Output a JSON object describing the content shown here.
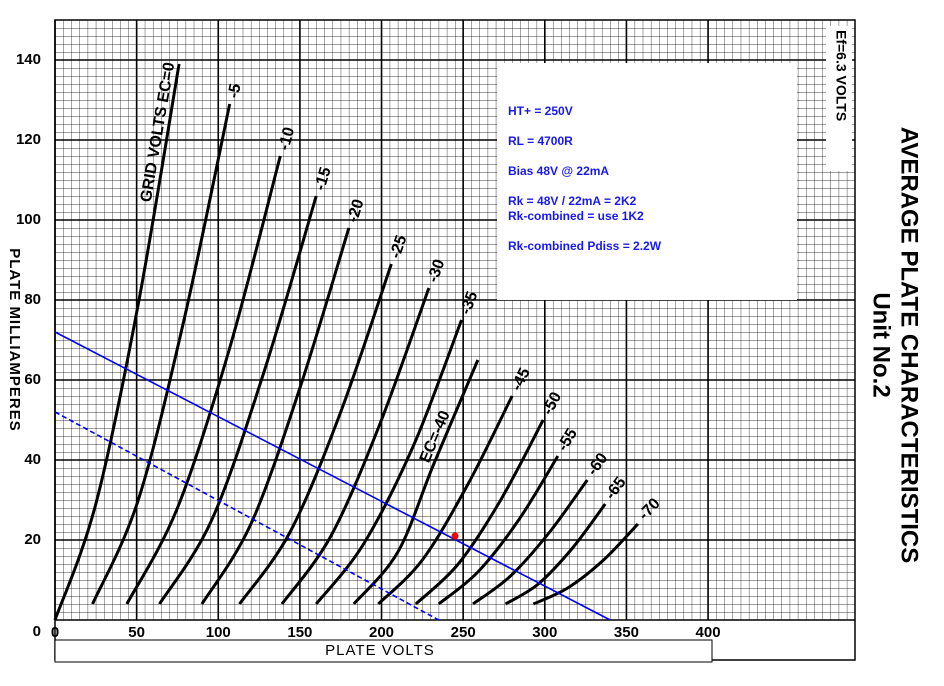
{
  "chart_data": {
    "type": "line",
    "title": "AVERAGE PLATE CHARACTERISTICS",
    "subtitle": "Unit No.2",
    "x_label": "PLATE VOLTS",
    "y_label": "PLATE MILLIAMPERES",
    "note": "Ef=6.3 VOLTS",
    "xlim": [
      0,
      490
    ],
    "ylim": [
      0,
      150
    ],
    "xticks": [
      0,
      50,
      100,
      150,
      200,
      250,
      300,
      350,
      400
    ],
    "yticks": [
      0,
      20,
      40,
      60,
      80,
      100,
      120,
      140
    ],
    "grid": true,
    "series": [
      {
        "name": "GRID VOLTS EC=0",
        "color": "#000000",
        "x": [
          0,
          25,
          51,
          76
        ],
        "values": [
          0,
          29,
          79,
          139
        ]
      },
      {
        "name": "-5",
        "color": "#000000",
        "x": [
          23,
          51,
          79,
          107
        ],
        "values": [
          4,
          30,
          75,
          129
        ]
      },
      {
        "name": "-10",
        "color": "#000000",
        "x": [
          44,
          75,
          107,
          138
        ],
        "values": [
          4,
          28,
          68,
          116
        ]
      },
      {
        "name": "-15",
        "color": "#000000",
        "x": [
          64,
          96,
          128,
          160
        ],
        "values": [
          4,
          25,
          62,
          106
        ]
      },
      {
        "name": "-20",
        "color": "#000000",
        "x": [
          90,
          120,
          150,
          180
        ],
        "values": [
          4,
          24,
          58,
          98
        ]
      },
      {
        "name": "-25",
        "color": "#000000",
        "x": [
          113,
          144,
          175,
          206
        ],
        "values": [
          4,
          22,
          52,
          89
        ]
      },
      {
        "name": "-30",
        "color": "#000000",
        "x": [
          139,
          169,
          199,
          229
        ],
        "values": [
          4,
          21,
          49,
          83
        ]
      },
      {
        "name": "-35",
        "color": "#000000",
        "x": [
          160,
          189,
          220,
          249
        ],
        "values": [
          4,
          19,
          44,
          75
        ]
      },
      {
        "name": "EC=-40",
        "color": "#000000",
        "x": [
          183,
          210,
          232,
          259
        ],
        "values": [
          4,
          17,
          39,
          65
        ]
      },
      {
        "name": "-45",
        "color": "#000000",
        "x": [
          198,
          225,
          253,
          280
        ],
        "values": [
          4,
          15,
          34,
          56
        ]
      },
      {
        "name": "-50",
        "color": "#000000",
        "x": [
          221,
          247,
          273,
          299
        ],
        "values": [
          4,
          14,
          30,
          50
        ]
      },
      {
        "name": "-55",
        "color": "#000000",
        "x": [
          235,
          259,
          284,
          308
        ],
        "values": [
          4,
          12,
          25,
          41
        ]
      },
      {
        "name": "-60",
        "color": "#000000",
        "x": [
          256,
          279,
          303,
          326
        ],
        "values": [
          4,
          11,
          22,
          35
        ]
      },
      {
        "name": "-65",
        "color": "#000000",
        "x": [
          276,
          296,
          317,
          337
        ],
        "values": [
          4,
          9,
          18,
          29
        ]
      },
      {
        "name": "-70",
        "color": "#000000",
        "x": [
          293,
          314,
          336,
          357
        ],
        "values": [
          4,
          8,
          15,
          24
        ]
      }
    ],
    "load_lines": [
      {
        "color": "#0000ff",
        "dashed": false,
        "x": [
          0,
          340
        ],
        "values": [
          72,
          0
        ]
      },
      {
        "color": "#0000ff",
        "dashed": true,
        "x": [
          0,
          235
        ],
        "values": [
          52,
          0
        ]
      }
    ],
    "operating_point": {
      "color": "#ff0000",
      "x": 245,
      "y": 21
    },
    "text_box": [
      "HT+ = 250V",
      "RL = 4700R",
      "Bias 48V @ 22mA",
      "Rk = 48V / 22mA = 2K2",
      "Rk-combined = use 1K2",
      "Rk-combined Pdiss = 2.2W"
    ]
  }
}
